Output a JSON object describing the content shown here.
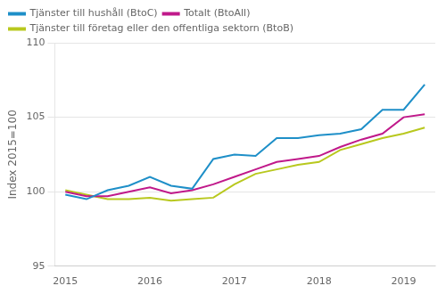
{
  "chart_data": {
    "type": "line",
    "ylabel": "Index 2015=100",
    "categories": [
      "2015",
      null,
      null,
      null,
      "2016",
      null,
      null,
      null,
      "2017",
      null,
      null,
      null,
      "2018",
      null,
      null,
      null,
      "2019",
      null
    ],
    "series": [
      {
        "name": "Tjänster till hushåll (BtoC)",
        "color": "#1e8fc8",
        "values": [
          99.8,
          99.5,
          100.1,
          100.4,
          101.0,
          100.4,
          100.2,
          102.2,
          102.5,
          102.4,
          103.6,
          103.6,
          103.8,
          103.9,
          104.2,
          105.5,
          105.5,
          107.2
        ]
      },
      {
        "name": "Totalt (BtoAll)",
        "color": "#c0198a",
        "values": [
          100.0,
          99.7,
          99.7,
          100.0,
          100.3,
          99.9,
          100.1,
          100.5,
          101.0,
          101.5,
          102.0,
          102.2,
          102.4,
          103.0,
          103.5,
          103.9,
          105.0,
          105.2
        ]
      },
      {
        "name": "Tjänster till företag eller den offentliga sektorn (BtoB)",
        "color": "#b8c81e",
        "values": [
          100.1,
          99.8,
          99.5,
          99.5,
          99.6,
          99.4,
          99.5,
          99.6,
          100.5,
          101.2,
          101.5,
          101.8,
          102.0,
          102.8,
          103.2,
          103.6,
          103.9,
          104.3
        ]
      }
    ],
    "ylim": [
      95,
      110
    ],
    "yticks": [
      95,
      100,
      105,
      110
    ],
    "grid": true,
    "legend": "upper left"
  }
}
